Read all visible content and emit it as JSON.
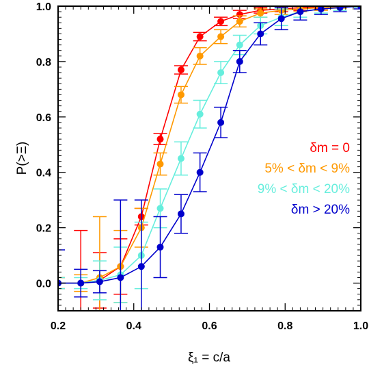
{
  "chart_data": {
    "type": "scatter",
    "title": "",
    "xlabel": "ξ₁ = c/a",
    "ylabel": "P(>Ξ)",
    "xlim": [
      0.2,
      1.0
    ],
    "ylim": [
      -0.1,
      1.0
    ],
    "x_ticks": [
      "0.2",
      "0.4",
      "0.6",
      "0.8",
      "1.0"
    ],
    "y_ticks": [
      "0.0",
      "0.2",
      "0.4",
      "0.6",
      "0.8",
      "1.0"
    ],
    "grid": false,
    "legend_position": "middle-right",
    "series": [
      {
        "name": "δm = 0",
        "color": "#ff0000",
        "x": [
          0.2,
          0.26,
          0.31,
          0.365,
          0.42,
          0.47,
          0.525,
          0.575,
          0.63,
          0.68,
          0.735,
          0.79,
          0.84,
          0.895,
          0.945,
          1.0
        ],
        "y": [
          0.0,
          0.0,
          0.01,
          0.06,
          0.24,
          0.52,
          0.77,
          0.89,
          0.945,
          0.97,
          0.985,
          0.99,
          0.995,
          0.998,
          0.999,
          1.0
        ],
        "err": [
          0.02,
          0.19,
          0.1,
          0.1,
          0.03,
          0.02,
          0.015,
          0.015,
          0.015,
          0.015,
          0.01,
          0.01,
          0.01,
          0.008,
          0.005,
          0.003
        ]
      },
      {
        "name": "5% < δm < 9%",
        "color": "#ff9900",
        "x": [
          0.2,
          0.26,
          0.31,
          0.365,
          0.42,
          0.47,
          0.525,
          0.575,
          0.63,
          0.68,
          0.735,
          0.79,
          0.84,
          0.895,
          0.945,
          1.0
        ],
        "y": [
          0.0,
          0.0,
          0.02,
          0.06,
          0.2,
          0.43,
          0.68,
          0.82,
          0.89,
          0.945,
          0.975,
          0.985,
          0.99,
          0.995,
          0.998,
          1.0
        ],
        "err": [
          0.02,
          0.03,
          0.22,
          0.13,
          0.07,
          0.04,
          0.03,
          0.03,
          0.025,
          0.02,
          0.015,
          0.015,
          0.01,
          0.01,
          0.005,
          0.005
        ]
      },
      {
        "name": "9% < δm < 20%",
        "color": "#66eedd",
        "x": [
          0.2,
          0.26,
          0.31,
          0.365,
          0.42,
          0.47,
          0.525,
          0.575,
          0.63,
          0.68,
          0.735,
          0.79,
          0.84,
          0.895,
          0.945,
          1.0
        ],
        "y": [
          0.0,
          0.0,
          0.01,
          0.03,
          0.1,
          0.27,
          0.45,
          0.61,
          0.76,
          0.86,
          0.93,
          0.96,
          0.98,
          0.99,
          0.995,
          1.0
        ],
        "err": [
          0.02,
          0.02,
          0.07,
          0.1,
          0.12,
          0.07,
          0.06,
          0.05,
          0.04,
          0.035,
          0.03,
          0.03,
          0.02,
          0.015,
          0.01,
          0.005
        ]
      },
      {
        "name": "δm > 20%",
        "color": "#0000cc",
        "x": [
          0.2,
          0.26,
          0.31,
          0.365,
          0.42,
          0.47,
          0.525,
          0.575,
          0.63,
          0.68,
          0.735,
          0.79,
          0.84,
          0.895,
          0.945,
          1.0
        ],
        "y": [
          0.0,
          0.0,
          0.005,
          0.02,
          0.06,
          0.13,
          0.25,
          0.4,
          0.58,
          0.8,
          0.9,
          0.955,
          0.98,
          0.99,
          0.995,
          1.0
        ],
        "err": [
          0.12,
          0.05,
          0.04,
          0.28,
          0.24,
          0.11,
          0.07,
          0.07,
          0.055,
          0.04,
          0.04,
          0.04,
          0.03,
          0.02,
          0.015,
          0.01
        ]
      }
    ]
  }
}
